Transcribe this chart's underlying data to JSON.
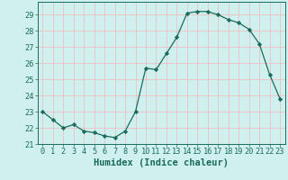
{
  "x": [
    0,
    1,
    2,
    3,
    4,
    5,
    6,
    7,
    8,
    9,
    10,
    11,
    12,
    13,
    14,
    15,
    16,
    17,
    18,
    19,
    20,
    21,
    22,
    23
  ],
  "y": [
    23.0,
    22.5,
    22.0,
    22.2,
    21.8,
    21.7,
    21.5,
    21.4,
    21.8,
    23.0,
    25.7,
    25.6,
    26.6,
    27.6,
    29.1,
    29.2,
    29.2,
    29.0,
    28.7,
    28.5,
    28.1,
    27.2,
    25.3,
    23.8
  ],
  "line_color": "#1a6b5a",
  "marker": "D",
  "marker_size": 2.2,
  "bg_color": "#d0f0f0",
  "grid_color": "#f0c0c0",
  "xlabel": "Humidex (Indice chaleur)",
  "ylim": [
    21,
    29.8
  ],
  "yticks": [
    21,
    22,
    23,
    24,
    25,
    26,
    27,
    28,
    29
  ],
  "xticks": [
    0,
    1,
    2,
    3,
    4,
    5,
    6,
    7,
    8,
    9,
    10,
    11,
    12,
    13,
    14,
    15,
    16,
    17,
    18,
    19,
    20,
    21,
    22,
    23
  ],
  "tick_label_fontsize": 6.2,
  "xlabel_fontsize": 7.5,
  "tick_color": "#1a6b5a"
}
